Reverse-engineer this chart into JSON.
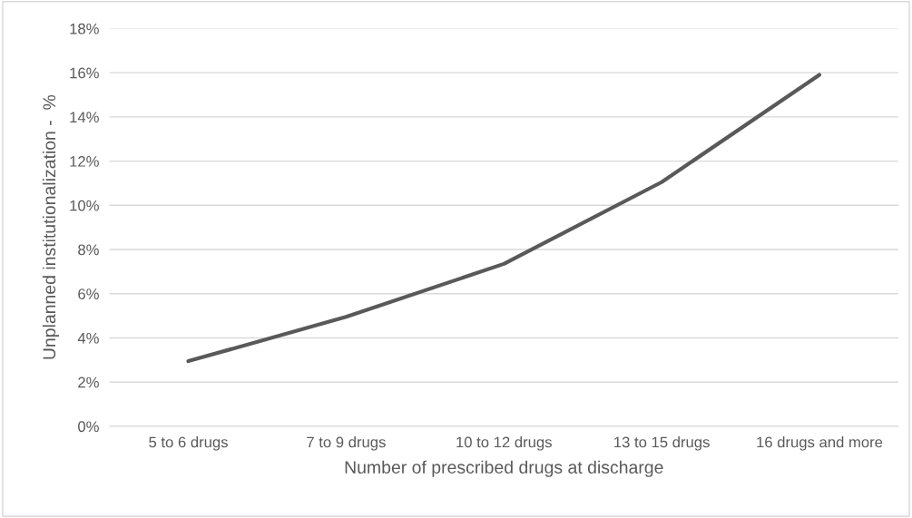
{
  "chart_data": {
    "type": "line",
    "xlabel": "Number of prescribed drugs at discharge",
    "ylabel": "Unplanned institutionalization -  %",
    "categories": [
      "5 to 6 drugs",
      "7 to 9 drugs",
      "10 to 12 drugs",
      "13 to 15 drugs",
      "16 drugs and more"
    ],
    "series": [
      {
        "color": "#595959",
        "values": [
          2.95,
          4.95,
          7.35,
          11.05,
          15.9
        ]
      }
    ],
    "ylim": [
      0,
      18
    ],
    "yticks": [
      {
        "value": 0,
        "label": "0%"
      },
      {
        "value": 2,
        "label": "2%"
      },
      {
        "value": 4,
        "label": "4%"
      },
      {
        "value": 6,
        "label": "6%"
      },
      {
        "value": 8,
        "label": "8%"
      },
      {
        "value": 10,
        "label": "10%"
      },
      {
        "value": 12,
        "label": "12%"
      },
      {
        "value": 14,
        "label": "14%"
      },
      {
        "value": 16,
        "label": "16%"
      },
      {
        "value": 18,
        "label": "18%"
      }
    ],
    "grid": "y",
    "marker": "none",
    "line_style": "solid"
  }
}
